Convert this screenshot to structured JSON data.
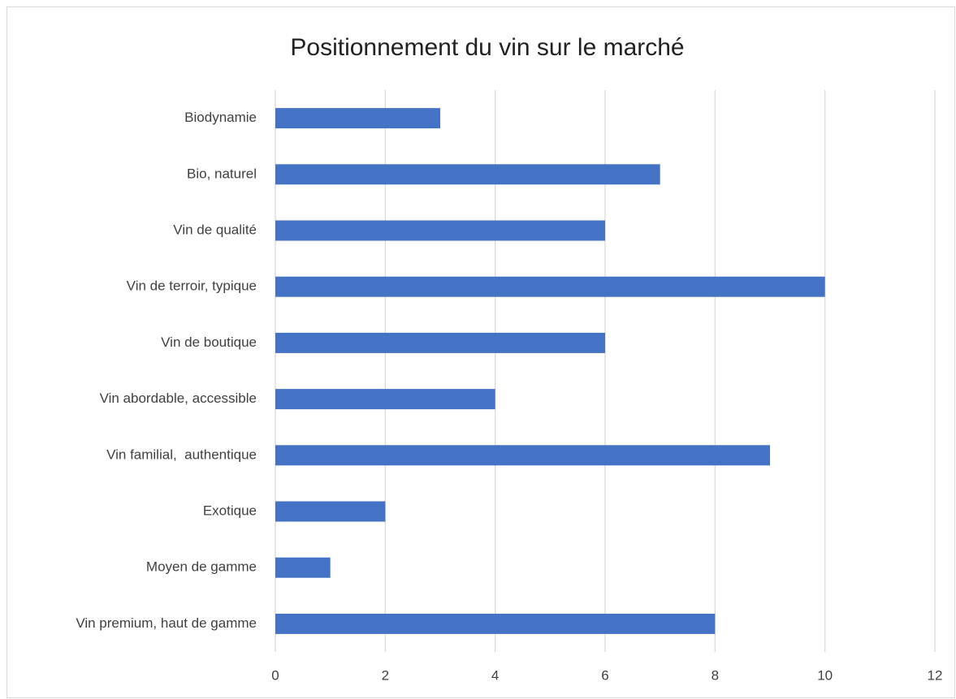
{
  "chart_data": {
    "type": "hbar",
    "title": "Positionnement du vin sur le marché",
    "categories": [
      "Biodynamie",
      "Bio, naturel",
      "Vin de qualité",
      "Vin de terroir, typique",
      "Vin de boutique",
      "Vin abordable, accessible",
      "Vin familial,  authentique",
      "Exotique",
      "Moyen de gamme",
      "Vin premium, haut de gamme"
    ],
    "values": [
      3,
      7,
      6,
      10,
      6,
      4,
      9,
      2,
      1,
      8
    ],
    "color": "#4472c4",
    "xlim": [
      0,
      12
    ],
    "xticks": [
      0,
      2,
      4,
      6,
      8,
      10,
      12
    ],
    "grid": true
  }
}
